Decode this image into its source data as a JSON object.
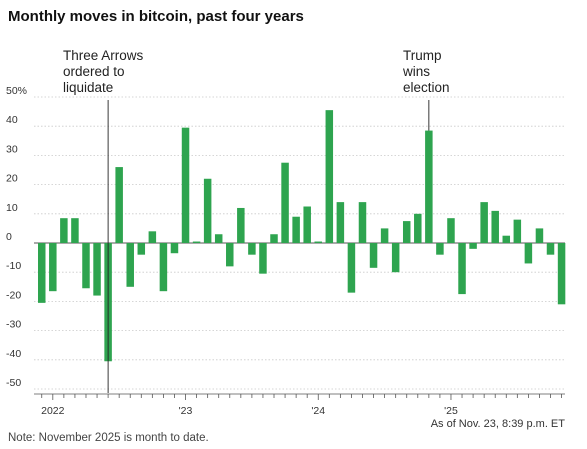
{
  "title": "Monthly moves in bitcoin, past four years",
  "as_of": "As of Nov. 23, 8:39 p.m. ET",
  "note": "Note: November 2025 is month to date.",
  "colors": {
    "bar": "#2ea44f",
    "grid": "#c9c9c9",
    "axis": "#555555",
    "annotation": "#222222"
  },
  "chart_data": {
    "type": "bar",
    "title": "Monthly moves in bitcoin, past four years",
    "xlabel": "",
    "ylabel": "",
    "ylim": [
      -50,
      50
    ],
    "grid": true,
    "y_ticks": [
      -50,
      -40,
      -30,
      -20,
      -10,
      0,
      10,
      20,
      30,
      40,
      50
    ],
    "y_tick_labels": [
      "-50",
      "-40",
      "-30",
      "-20",
      "-10",
      "0",
      "10",
      "20",
      "30",
      "40",
      "50%"
    ],
    "x_tick_labels": [
      {
        "label": "2022",
        "month": "2022-01"
      },
      {
        "label": "'23",
        "month": "2023-01"
      },
      {
        "label": "'24",
        "month": "2024-01"
      },
      {
        "label": "'25",
        "month": "2025-01"
      }
    ],
    "categories": [
      "2021-12",
      "2022-01",
      "2022-02",
      "2022-03",
      "2022-04",
      "2022-05",
      "2022-06",
      "2022-07",
      "2022-08",
      "2022-09",
      "2022-10",
      "2022-11",
      "2022-12",
      "2023-01",
      "2023-02",
      "2023-03",
      "2023-04",
      "2023-05",
      "2023-06",
      "2023-07",
      "2023-08",
      "2023-09",
      "2023-10",
      "2023-11",
      "2023-12",
      "2024-01",
      "2024-02",
      "2024-03",
      "2024-04",
      "2024-05",
      "2024-06",
      "2024-07",
      "2024-08",
      "2024-09",
      "2024-10",
      "2024-11",
      "2024-12",
      "2025-01",
      "2025-02",
      "2025-03",
      "2025-04",
      "2025-05",
      "2025-06",
      "2025-07",
      "2025-08",
      "2025-09",
      "2025-10",
      "2025-11"
    ],
    "values": [
      -20.5,
      -16.5,
      8.5,
      8.5,
      -15.5,
      -18,
      -40.5,
      26,
      -15,
      -4,
      4,
      -16.5,
      -3.5,
      39.5,
      0.5,
      22,
      3,
      -8,
      12,
      -4,
      -10.5,
      3,
      27.5,
      9,
      12.5,
      0.5,
      45.5,
      14,
      -17,
      14,
      -8.5,
      5,
      -10,
      7.5,
      10,
      38.5,
      -4,
      8.5,
      -17.5,
      -2,
      14,
      11,
      2.5,
      8,
      -7,
      5,
      -4,
      -21
    ],
    "annotations": [
      {
        "month": "2022-06",
        "lines": [
          "Three Arrows",
          "ordered to",
          "liquidate"
        ]
      },
      {
        "month": "2024-11",
        "lines": [
          "Trump",
          "wins",
          "election"
        ]
      }
    ]
  }
}
